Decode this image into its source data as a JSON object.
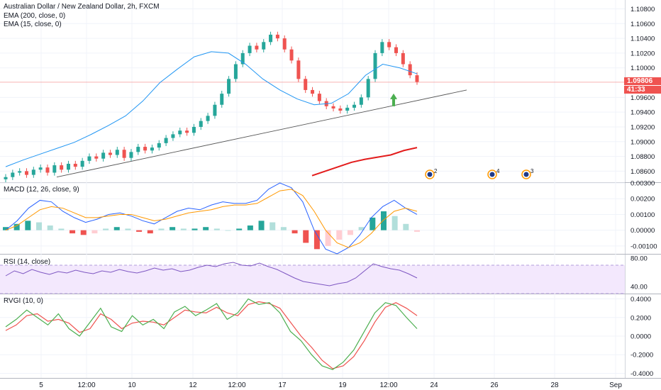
{
  "header": {
    "symbol_line": "Australian Dollar / New Zealand Dollar, 2h, FXCM",
    "ema200_label": "EMA (200, close, 0)",
    "ema15_label": "EMA (15, close, 0)"
  },
  "price_axis": {
    "ticks": [
      "1.10800",
      "1.10600",
      "1.10400",
      "1.10200",
      "1.10000",
      "1.09600",
      "1.09400",
      "1.09200",
      "1.09000",
      "1.08800",
      "1.08600"
    ],
    "last_price": "1.09806",
    "countdown": "41:33"
  },
  "macd_pane": {
    "title": "MACD (12, 26, close, 9)",
    "ticks": [
      "0.00300",
      "0.00200",
      "0.00100",
      "0.00000",
      "-0.00100"
    ]
  },
  "rsi_pane": {
    "title": "RSI (14, close)",
    "ticks": [
      "80.00",
      "40.00"
    ]
  },
  "rvgi_pane": {
    "title": "RVGI (10, 0)",
    "ticks": [
      "0.4000",
      "0.2000",
      "0.0000",
      "-0.2000",
      "-0.4000"
    ]
  },
  "time_axis": {
    "labels": [
      "5",
      "12:00",
      "10",
      "12",
      "12:00",
      "17",
      "19",
      "12:00",
      "24",
      "26",
      "28",
      "Sep"
    ]
  },
  "event_markers": [
    "2",
    "4",
    "3"
  ],
  "colors": {
    "up": "#26a69a",
    "down": "#ef5350",
    "ema15": "#2196f3",
    "ema200": "#e31c1c",
    "macd_line": "#2962ff",
    "signal_line": "#ff9800",
    "rsi_line": "#7e57c2",
    "rsi_band": "#f3e8fd",
    "rvgi_line": "#4caf50",
    "rvgi_signal": "#ef5350",
    "trendline": "#555555",
    "arrow": "#4caf50"
  },
  "chart_data": [
    {
      "type": "candlestick",
      "title": "Australian Dollar / New Zealand Dollar, 2h, FXCM",
      "ylim": [
        1.0845,
        1.1092
      ],
      "series": [
        {
          "name": "EMA (15, close, 0)",
          "values": [
            1.0866,
            1.0875,
            1.0883,
            1.0891,
            1.0899,
            1.091,
            1.0922,
            1.0935,
            1.0955,
            1.098,
            1.0998,
            1.1015,
            1.1022,
            1.102,
            1.1005,
            1.0985,
            1.097,
            1.0958,
            1.095,
            1.0952,
            1.0965,
            1.099,
            1.1005,
            1.1,
            1.0992
          ]
        },
        {
          "name": "EMA (200, close, 0)",
          "values": [
            1.0854,
            1.086,
            1.0866,
            1.0872,
            1.0876,
            1.0879,
            1.0882,
            1.0888,
            1.0892
          ]
        }
      ],
      "candles_close": [
        1.0852,
        1.0858,
        1.086,
        1.0855,
        1.0862,
        1.0865,
        1.0858,
        1.0868,
        1.0862,
        1.087,
        1.0866,
        1.0874,
        1.088,
        1.0877,
        1.0885,
        1.0882,
        1.0889,
        1.0878,
        1.0886,
        1.0893,
        1.0888,
        1.0892,
        1.0898,
        1.0905,
        1.091,
        1.0915,
        1.0912,
        1.092,
        1.0928,
        1.0935,
        1.095,
        1.0965,
        1.0985,
        1.1005,
        1.102,
        1.103,
        1.1025,
        1.1035,
        1.1045,
        1.104,
        1.1025,
        1.101,
        1.0985,
        1.097,
        1.0965,
        1.0955,
        1.0948,
        1.0945,
        1.0942,
        1.0946,
        1.095,
        1.096,
        1.0985,
        1.102,
        1.1035,
        1.1028,
        1.102,
        1.1005,
        1.099,
        1.0981
      ],
      "last_price": 1.09806
    },
    {
      "type": "bar",
      "title": "MACD (12, 26, close, 9)",
      "ylim": [
        -0.0015,
        0.003
      ],
      "series": [
        {
          "name": "histogram",
          "values": [
            0.0002,
            0.0004,
            0.0006,
            0.0005,
            0.0003,
            0.0001,
            -0.0002,
            -0.0003,
            -0.0002,
            0.0001,
            0.0002,
            0.0001,
            -0.0001,
            -0.0002,
            0.0001,
            0.0002,
            0.0001,
            0.0001,
            0.0002,
            0.0001,
            0.0,
            0.0001,
            0.0003,
            0.0006,
            0.0005,
            0.0002,
            -0.0002,
            -0.0008,
            -0.0012,
            -0.001,
            -0.0006,
            -0.0003,
            0.0002,
            0.0008,
            0.0012,
            0.0009,
            0.0004,
            -0.0001
          ]
        },
        {
          "name": "macd",
          "values": [
            0.0,
            0.0006,
            0.0014,
            0.0019,
            0.0018,
            0.0012,
            0.0008,
            0.0005,
            0.0007,
            0.001,
            0.0011,
            0.0009,
            0.0006,
            0.0004,
            0.0008,
            0.0012,
            0.0014,
            0.0013,
            0.0016,
            0.0018,
            0.0017,
            0.0017,
            0.0019,
            0.0026,
            0.003,
            0.0027,
            0.0018,
            0.0,
            -0.0012,
            -0.0015,
            -0.0011,
            -0.0003,
            0.0008,
            0.0015,
            0.0019,
            0.0014,
            0.001
          ]
        },
        {
          "name": "signal",
          "values": [
            0.0,
            0.0003,
            0.0008,
            0.0013,
            0.0015,
            0.0014,
            0.0011,
            0.0008,
            0.0008,
            0.0009,
            0.001,
            0.001,
            0.0008,
            0.0006,
            0.0007,
            0.0009,
            0.0011,
            0.0012,
            0.0013,
            0.0015,
            0.0016,
            0.0016,
            0.0017,
            0.0021,
            0.0025,
            0.0026,
            0.0022,
            0.0012,
            0.0,
            -0.0008,
            -0.0011,
            -0.0008,
            -0.0002,
            0.0006,
            0.0012,
            0.0014,
            0.0012
          ]
        }
      ]
    },
    {
      "type": "line",
      "title": "RSI (14, close)",
      "ylim": [
        30,
        85
      ],
      "band": [
        30,
        70
      ],
      "series": [
        {
          "name": "RSI",
          "values": [
            55,
            62,
            58,
            64,
            60,
            57,
            61,
            59,
            63,
            60,
            58,
            62,
            60,
            64,
            61,
            59,
            62,
            66,
            63,
            65,
            61,
            63,
            67,
            70,
            68,
            72,
            74,
            70,
            69,
            73,
            68,
            64,
            58,
            52,
            47,
            45,
            43,
            41,
            44,
            46,
            52,
            62,
            72,
            68,
            65,
            63,
            58,
            52
          ]
        }
      ]
    },
    {
      "type": "line",
      "title": "RVGI (10, 0)",
      "ylim": [
        -0.45,
        0.45
      ],
      "series": [
        {
          "name": "RVGI",
          "values": [
            0.1,
            0.18,
            0.28,
            0.2,
            0.12,
            0.24,
            0.08,
            0.0,
            0.15,
            0.3,
            0.1,
            0.05,
            0.22,
            0.12,
            0.18,
            0.08,
            0.26,
            0.32,
            0.22,
            0.28,
            0.35,
            0.18,
            0.25,
            0.4,
            0.34,
            0.36,
            0.25,
            0.05,
            -0.05,
            -0.2,
            -0.32,
            -0.36,
            -0.28,
            -0.15,
            0.05,
            0.25,
            0.36,
            0.33,
            0.2,
            0.08
          ]
        },
        {
          "name": "Signal",
          "values": [
            0.06,
            0.12,
            0.22,
            0.24,
            0.16,
            0.18,
            0.14,
            0.04,
            0.08,
            0.24,
            0.18,
            0.08,
            0.14,
            0.16,
            0.15,
            0.12,
            0.2,
            0.28,
            0.26,
            0.25,
            0.31,
            0.25,
            0.22,
            0.34,
            0.37,
            0.35,
            0.3,
            0.15,
            0.0,
            -0.12,
            -0.26,
            -0.35,
            -0.32,
            -0.22,
            -0.05,
            0.15,
            0.31,
            0.36,
            0.3,
            0.22
          ]
        }
      ]
    }
  ]
}
